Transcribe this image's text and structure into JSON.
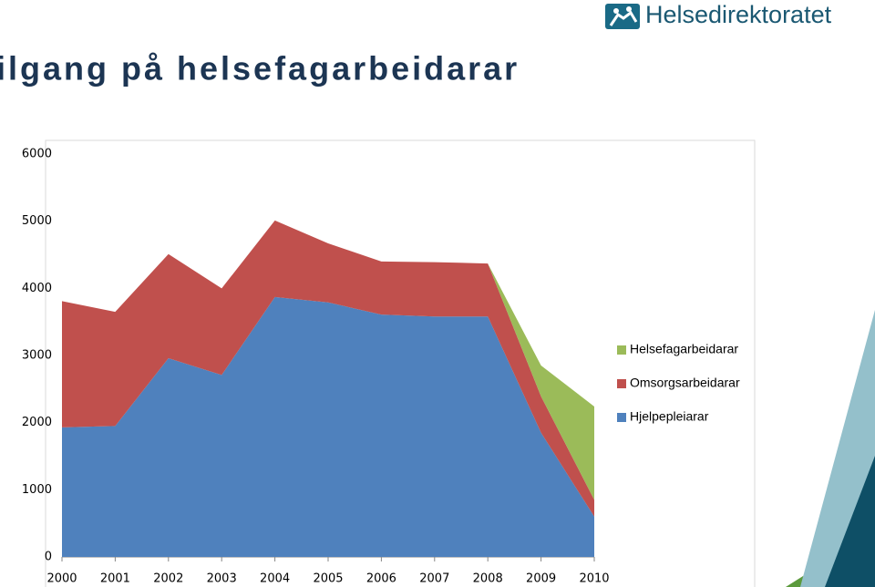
{
  "slide": {
    "title": "ilgang på helsefagarbeidarar",
    "logo": "Helsedirektoratet"
  },
  "chart_data": {
    "type": "stacked_area",
    "categories": [
      "2000",
      "2001",
      "2002",
      "2003",
      "2004",
      "2005",
      "2006",
      "2007",
      "2008",
      "2009",
      "2010"
    ],
    "series": [
      {
        "name": "Hjelpepleiarar",
        "color": "#4f81bd",
        "values": [
          1930,
          1950,
          2960,
          2710,
          3870,
          3790,
          3610,
          3580,
          3580,
          1850,
          600
        ]
      },
      {
        "name": "Omsorgsarbeidarar",
        "color": "#c0504d",
        "values": [
          1880,
          1700,
          1550,
          1290,
          1140,
          880,
          790,
          810,
          790,
          540,
          250
        ]
      },
      {
        "name": "Helsefagarbeidarar",
        "color": "#9bbb59",
        "values": [
          0,
          0,
          0,
          0,
          0,
          0,
          0,
          0,
          0,
          460,
          1390
        ]
      }
    ],
    "ylim": [
      0,
      6000
    ],
    "yticks": [
      0,
      1000,
      2000,
      3000,
      4000,
      5000,
      6000
    ],
    "legend": "right",
    "grid": false
  }
}
